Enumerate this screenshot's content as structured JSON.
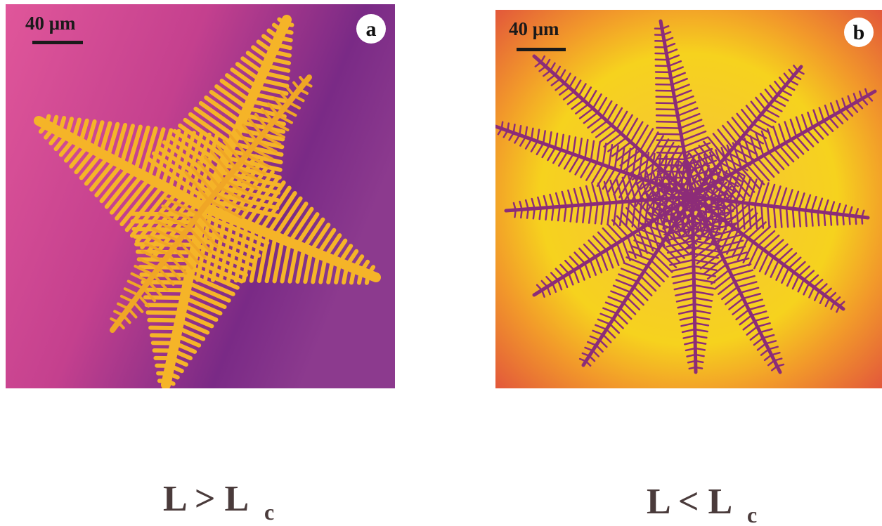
{
  "panels": [
    {
      "label": "a",
      "scale_bar": "40 μm",
      "caption": "L > L",
      "caption_subscript": "c"
    },
    {
      "label": "b",
      "scale_bar": "40 μm",
      "caption": "L < L",
      "caption_subscript": "c"
    }
  ]
}
